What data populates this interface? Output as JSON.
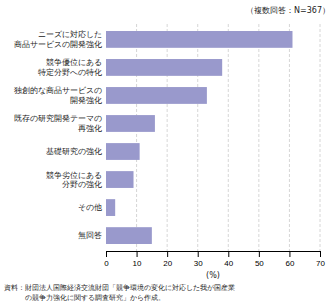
{
  "chart_data": {
    "type": "bar",
    "orientation": "horizontal",
    "subtitle": "（複数回答：N=367）",
    "categories": [
      "無回答",
      "その他",
      "競争劣位にある\n分野の強化",
      "基礎研究の強化",
      "既存の研究開発テーマの\n再強化",
      "独創的な商品サービスの\n開発強化",
      "競争優位にある\n特定分野への特化",
      "ニーズに対応した\n商品サービスの開発強化"
    ],
    "values": [
      15.0,
      3.0,
      9.0,
      11.0,
      16.0,
      33.0,
      38.0,
      61.0
    ],
    "color": "#9999cc",
    "xlim": [
      0,
      70
    ],
    "xticks": [
      0,
      10,
      20,
      30,
      40,
      50,
      60,
      70
    ],
    "xlabel": "(%)",
    "grid": true,
    "annotations": [
      "資料：財団法人国際経済交流財団「競争環境の変化に対応した我が国産業",
      "　　　の競争力強化に関する調査研究」から作成。"
    ]
  }
}
